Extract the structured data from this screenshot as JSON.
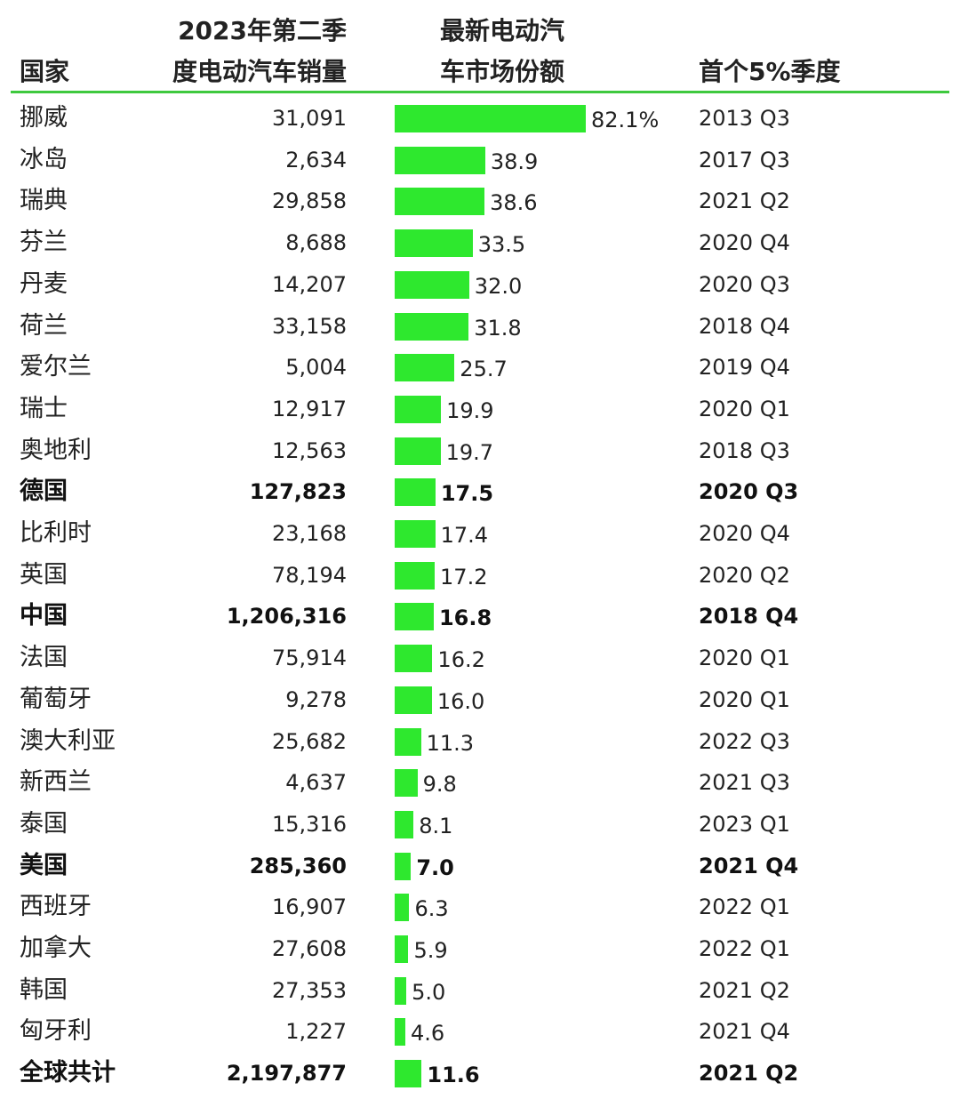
{
  "chart_data": {
    "type": "bar",
    "headers": {
      "country": "国家",
      "sales_line1": "2023年第二季",
      "sales_line2": "度电动汽车销量",
      "share_line1": "最新电动汽",
      "share_line2": "车市场份额",
      "first_quarter": "首个5%季度"
    },
    "colors": {
      "bar": "#2ee82e",
      "rule": "#3ec93e"
    },
    "rows": [
      {
        "country": "挪威",
        "sales": "31,091",
        "share": 82.1,
        "share_label": "82.1%",
        "first_quarter": "2013 Q3",
        "bold": false
      },
      {
        "country": "冰岛",
        "sales": "2,634",
        "share": 38.9,
        "share_label": "38.9",
        "first_quarter": "2017 Q3",
        "bold": false
      },
      {
        "country": "瑞典",
        "sales": "29,858",
        "share": 38.6,
        "share_label": "38.6",
        "first_quarter": "2021 Q2",
        "bold": false
      },
      {
        "country": "芬兰",
        "sales": "8,688",
        "share": 33.5,
        "share_label": "33.5",
        "first_quarter": "2020 Q4",
        "bold": false
      },
      {
        "country": "丹麦",
        "sales": "14,207",
        "share": 32.0,
        "share_label": "32.0",
        "first_quarter": "2020 Q3",
        "bold": false
      },
      {
        "country": "荷兰",
        "sales": "33,158",
        "share": 31.8,
        "share_label": "31.8",
        "first_quarter": "2018 Q4",
        "bold": false
      },
      {
        "country": "爱尔兰",
        "sales": "5,004",
        "share": 25.7,
        "share_label": "25.7",
        "first_quarter": "2019 Q4",
        "bold": false
      },
      {
        "country": "瑞士",
        "sales": "12,917",
        "share": 19.9,
        "share_label": "19.9",
        "first_quarter": "2020 Q1",
        "bold": false
      },
      {
        "country": "奥地利",
        "sales": "12,563",
        "share": 19.7,
        "share_label": "19.7",
        "first_quarter": "2018 Q3",
        "bold": false
      },
      {
        "country": "德国",
        "sales": "127,823",
        "share": 17.5,
        "share_label": "17.5",
        "first_quarter": "2020 Q3",
        "bold": true
      },
      {
        "country": "比利时",
        "sales": "23,168",
        "share": 17.4,
        "share_label": "17.4",
        "first_quarter": "2020 Q4",
        "bold": false
      },
      {
        "country": "英国",
        "sales": "78,194",
        "share": 17.2,
        "share_label": "17.2",
        "first_quarter": "2020 Q2",
        "bold": false
      },
      {
        "country": "中国",
        "sales": "1,206,316",
        "share": 16.8,
        "share_label": "16.8",
        "first_quarter": "2018 Q4",
        "bold": true
      },
      {
        "country": "法国",
        "sales": "75,914",
        "share": 16.2,
        "share_label": "16.2",
        "first_quarter": "2020 Q1",
        "bold": false
      },
      {
        "country": "葡萄牙",
        "sales": "9,278",
        "share": 16.0,
        "share_label": "16.0",
        "first_quarter": "2020 Q1",
        "bold": false
      },
      {
        "country": "澳大利亚",
        "sales": "25,682",
        "share": 11.3,
        "share_label": "11.3",
        "first_quarter": "2022 Q3",
        "bold": false
      },
      {
        "country": "新西兰",
        "sales": "4,637",
        "share": 9.8,
        "share_label": "9.8",
        "first_quarter": "2021 Q3",
        "bold": false
      },
      {
        "country": "泰国",
        "sales": "15,316",
        "share": 8.1,
        "share_label": "8.1",
        "first_quarter": "2023 Q1",
        "bold": false
      },
      {
        "country": "美国",
        "sales": "285,360",
        "share": 7.0,
        "share_label": "7.0",
        "first_quarter": "2021 Q4",
        "bold": true
      },
      {
        "country": "西班牙",
        "sales": "16,907",
        "share": 6.3,
        "share_label": "6.3",
        "first_quarter": "2022 Q1",
        "bold": false
      },
      {
        "country": "加拿大",
        "sales": "27,608",
        "share": 5.9,
        "share_label": "5.9",
        "first_quarter": "2022 Q1",
        "bold": false
      },
      {
        "country": "韩国",
        "sales": "27,353",
        "share": 5.0,
        "share_label": "5.0",
        "first_quarter": "2021 Q2",
        "bold": false
      },
      {
        "country": "匈牙利",
        "sales": "1,227",
        "share": 4.6,
        "share_label": "4.6",
        "first_quarter": "2021 Q4",
        "bold": false
      },
      {
        "country": "全球共计",
        "sales": "2,197,877",
        "share": 11.6,
        "share_label": "11.6",
        "first_quarter": "2021 Q2",
        "bold": true
      }
    ]
  }
}
